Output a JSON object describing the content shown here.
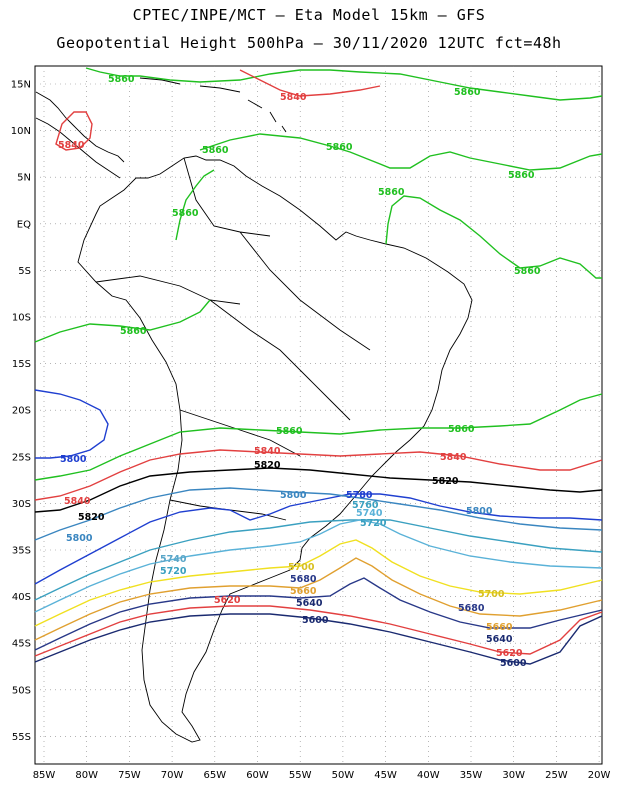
{
  "header": {
    "line1": "CPTEC/INPE/MCT –  Eta Model 15km – GFS",
    "line2": "Geopotential Height 500hPa – 30/11/2020 12UTC fct=48h"
  },
  "axes": {
    "x_ticks": [
      "85W",
      "80W",
      "75W",
      "70W",
      "65W",
      "60W",
      "55W",
      "50W",
      "45W",
      "40W",
      "35W",
      "30W",
      "25W",
      "20W"
    ],
    "y_ticks": [
      "15N",
      "10N",
      "5N",
      "EQ",
      "5S",
      "10S",
      "15S",
      "20S",
      "25S",
      "30S",
      "35S",
      "40S",
      "45S",
      "50S",
      "55S"
    ]
  },
  "colors": {
    "c5880": "#20c020",
    "c5860": "#e24040",
    "c5840": "#000000",
    "c5820": "#1f3fd0",
    "c5800": "#3a86c0",
    "c5780": "#3aa0c0",
    "c5760": "#5ab2d8",
    "c5740": "#5aa6c8",
    "c5720": "#f0e020",
    "c5700": "#e0a030",
    "c5680": "#d84040",
    "c5660": "#283888",
    "c5640": "#1a2a70",
    "coast": "#000000",
    "grid": "#888888"
  },
  "labels": {
    "l5860_a": "5860",
    "l5860_b": "5860",
    "l5860_c": "5860",
    "l5860_d": "5860",
    "l5860_e": "5860",
    "l5860_f": "5860",
    "l5860_g": "5860",
    "l5860_h": "5860",
    "l5860_i": "5860",
    "l5860_j": "5860",
    "l5860_k": "5860",
    "l5840_a": "5840",
    "l5840_b": "5840",
    "l5840_c": "5840",
    "l5840_d": "5840",
    "l5840_e": "5840",
    "l5820_a": "5820",
    "l5820_b": "5820",
    "l5820_c": "5820",
    "l5800_a": "5800",
    "l5800_b": "5800",
    "l5800_c": "5800",
    "l5780_a": "5780",
    "l5760_a": "5760",
    "l5740_a": "5740",
    "l5740_b": "5740",
    "l5720_a": "5720",
    "l5720_b": "5720",
    "l5700_a": "5700",
    "l5700_b": "5700",
    "l5680_a": "5680",
    "l5680_b": "5680",
    "l5660_a": "5660",
    "l5660_b": "5660",
    "l5640_a": "5640",
    "l5640_b": "5640",
    "l5620_a": "5620",
    "l5620_b": "5620",
    "l5600_a": "5600",
    "l5600_b": "5600"
  }
}
